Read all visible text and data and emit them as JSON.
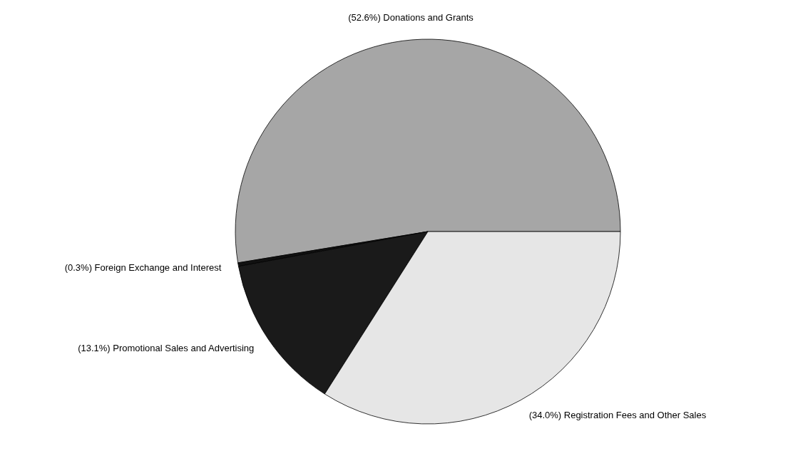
{
  "chart_data": {
    "type": "pie",
    "categories": [
      "Donations and Grants",
      "Foreign Exchange and Interest",
      "Promotional Sales and Advertising",
      "Registration Fees and Other Sales"
    ],
    "values": [
      52.6,
      0.3,
      13.1,
      34.0
    ],
    "value_labels": [
      "(52.6%)",
      "(0.3%)",
      "(13.1%)",
      "(34.0%)"
    ],
    "colors": [
      "#a6a6a6",
      "#111111",
      "#1a1a1a",
      "#e6e6e6"
    ]
  }
}
